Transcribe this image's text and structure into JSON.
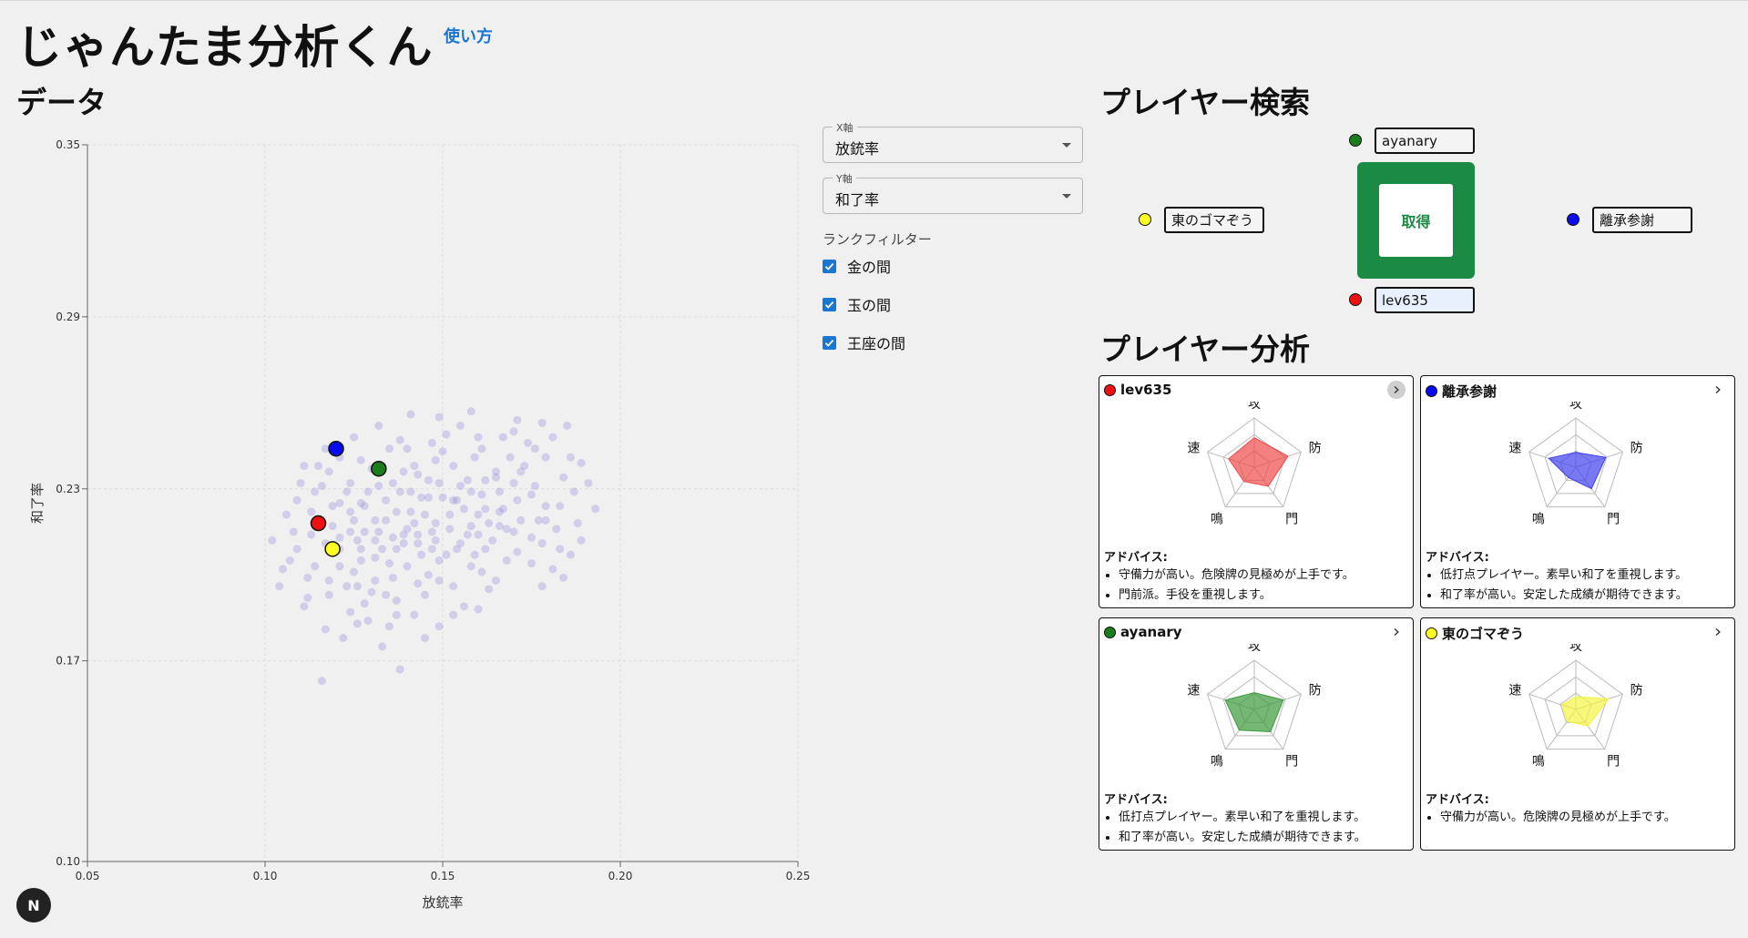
{
  "app": {
    "title": "じゃんたま分析くん",
    "help_link": "使い方",
    "corner_badge": "N"
  },
  "sections": {
    "data": "データ",
    "search": "プレイヤー検索",
    "analysis": "プレイヤー分析"
  },
  "controls": {
    "x_axis": {
      "legend": "X軸",
      "value": "放銃率"
    },
    "y_axis": {
      "legend": "Y軸",
      "value": "和了率"
    },
    "rank_filter": {
      "label": "ランクフィルター",
      "items": [
        {
          "label": "金の間",
          "checked": true
        },
        {
          "label": "玉の間",
          "checked": true
        },
        {
          "label": "王座の間",
          "checked": true
        }
      ]
    }
  },
  "search": {
    "get_button": "取得",
    "players": [
      {
        "slot": "top",
        "name": "ayanary",
        "color": "#1b7d1b"
      },
      {
        "slot": "left",
        "name": "東のゴマぞう",
        "color": "#ffff22"
      },
      {
        "slot": "right",
        "name": "離承参謝",
        "color": "#0a0aee"
      },
      {
        "slot": "bottom",
        "name": "lev635",
        "color": "#ee1111"
      }
    ]
  },
  "analysis": {
    "axes": [
      "攻",
      "防",
      "門",
      "鳴",
      "速"
    ],
    "advice_label": "アドバイス:",
    "cards": [
      {
        "name": "lev635",
        "color": "#ee1111",
        "fill": "#f04a4a",
        "values": [
          0.6,
          0.72,
          0.48,
          0.36,
          0.55
        ],
        "advice": [
          "守備力が高い。危険牌の見極めが上手です。",
          "門前派。手役を重視します。"
        ]
      },
      {
        "name": "離承参謝",
        "color": "#0a0aee",
        "fill": "#4040ee",
        "values": [
          0.3,
          0.64,
          0.54,
          0.26,
          0.58
        ],
        "advice": [
          "低打点プレイヤー。素早い和了を重視します。",
          "和了率が高い。安定した成績が期待できます。"
        ]
      },
      {
        "name": "ayanary",
        "color": "#1b7d1b",
        "fill": "#3a9a3a",
        "values": [
          0.34,
          0.62,
          0.56,
          0.52,
          0.62
        ],
        "advice": [
          "低打点プレイヤー。素早い和了を重視します。",
          "和了率が高い。安定した成績が期待できます。"
        ]
      },
      {
        "name": "東のゴマぞう",
        "color": "#ffff22",
        "fill": "#f4f440",
        "values": [
          0.26,
          0.7,
          0.42,
          0.3,
          0.3
        ],
        "advice": [
          "守備力が高い。危険牌の見極めが上手です。"
        ]
      }
    ]
  },
  "chart_data": {
    "type": "scatter",
    "xlabel": "放銃率",
    "ylabel": "和了率",
    "xlim": [
      0.05,
      0.25
    ],
    "ylim": [
      0.1,
      0.35
    ],
    "x_ticks": [
      "0.05",
      "0.10",
      "0.15",
      "0.20",
      "0.25"
    ],
    "y_ticks": [
      "0.10",
      "0.17",
      "0.23",
      "0.29",
      "0.35"
    ],
    "grid": true,
    "background": {
      "color": "#8c86d8",
      "points": [
        [
          0.12,
          0.245
        ],
        [
          0.116,
          0.231
        ],
        [
          0.108,
          0.215
        ],
        [
          0.118,
          0.198
        ],
        [
          0.112,
          0.192
        ],
        [
          0.102,
          0.212
        ],
        [
          0.109,
          0.226
        ],
        [
          0.124,
          0.222
        ],
        [
          0.128,
          0.215
        ],
        [
          0.131,
          0.206
        ],
        [
          0.126,
          0.196
        ],
        [
          0.136,
          0.213
        ],
        [
          0.141,
          0.222
        ],
        [
          0.144,
          0.227
        ],
        [
          0.132,
          0.231
        ],
        [
          0.139,
          0.236
        ],
        [
          0.148,
          0.218
        ],
        [
          0.151,
          0.207
        ],
        [
          0.146,
          0.2
        ],
        [
          0.154,
          0.226
        ],
        [
          0.157,
          0.214
        ],
        [
          0.16,
          0.221
        ],
        [
          0.162,
          0.233
        ],
        [
          0.166,
          0.222
        ],
        [
          0.17,
          0.215
        ],
        [
          0.175,
          0.228
        ],
        [
          0.172,
          0.236
        ],
        [
          0.178,
          0.211
        ],
        [
          0.183,
          0.224
        ],
        [
          0.186,
          0.207
        ],
        [
          0.191,
          0.232
        ],
        [
          0.181,
          0.202
        ],
        [
          0.168,
          0.205
        ],
        [
          0.163,
          0.195
        ],
        [
          0.156,
          0.189
        ],
        [
          0.149,
          0.182
        ],
        [
          0.142,
          0.186
        ],
        [
          0.137,
          0.191
        ],
        [
          0.129,
          0.184
        ],
        [
          0.122,
          0.178
        ],
        [
          0.116,
          0.163
        ],
        [
          0.133,
          0.175
        ],
        [
          0.138,
          0.167
        ],
        [
          0.141,
          0.256
        ],
        [
          0.151,
          0.249
        ],
        [
          0.159,
          0.241
        ],
        [
          0.167,
          0.248
        ],
        [
          0.171,
          0.254
        ],
        [
          0.176,
          0.244
        ],
        [
          0.186,
          0.241
        ],
        [
          0.143,
          0.235
        ],
        [
          0.135,
          0.244
        ],
        [
          0.127,
          0.24
        ],
        [
          0.118,
          0.236
        ],
        [
          0.113,
          0.222
        ],
        [
          0.107,
          0.205
        ],
        [
          0.104,
          0.196
        ],
        [
          0.114,
          0.203
        ],
        [
          0.121,
          0.209
        ],
        [
          0.125,
          0.201
        ],
        [
          0.131,
          0.198
        ],
        [
          0.135,
          0.204
        ],
        [
          0.139,
          0.211
        ],
        [
          0.143,
          0.214
        ],
        [
          0.147,
          0.209
        ],
        [
          0.152,
          0.216
        ],
        [
          0.156,
          0.223
        ],
        [
          0.161,
          0.228
        ],
        [
          0.165,
          0.234
        ],
        [
          0.169,
          0.241
        ],
        [
          0.173,
          0.238
        ],
        [
          0.177,
          0.219
        ],
        [
          0.182,
          0.216
        ],
        [
          0.188,
          0.218
        ],
        [
          0.184,
          0.234
        ],
        [
          0.179,
          0.241
        ],
        [
          0.171,
          0.226
        ],
        [
          0.164,
          0.212
        ],
        [
          0.158,
          0.203
        ],
        [
          0.153,
          0.196
        ],
        [
          0.145,
          0.193
        ],
        [
          0.137,
          0.186
        ],
        [
          0.128,
          0.19
        ],
        [
          0.124,
          0.187
        ],
        [
          0.117,
          0.181
        ],
        [
          0.111,
          0.189
        ],
        [
          0.106,
          0.221
        ],
        [
          0.11,
          0.232
        ],
        [
          0.115,
          0.238
        ],
        [
          0.123,
          0.229
        ],
        [
          0.127,
          0.225
        ],
        [
          0.131,
          0.219
        ],
        [
          0.134,
          0.226
        ],
        [
          0.138,
          0.229
        ],
        [
          0.142,
          0.218
        ],
        [
          0.146,
          0.227
        ],
        [
          0.149,
          0.232
        ],
        [
          0.153,
          0.238
        ],
        [
          0.157,
          0.233
        ],
        [
          0.16,
          0.214
        ],
        [
          0.163,
          0.218
        ],
        [
          0.167,
          0.223
        ],
        [
          0.171,
          0.208
        ],
        [
          0.175,
          0.213
        ],
        [
          0.179,
          0.224
        ],
        [
          0.183,
          0.209
        ],
        [
          0.187,
          0.229
        ],
        [
          0.193,
          0.223
        ],
        [
          0.155,
          0.252
        ],
        [
          0.161,
          0.244
        ],
        [
          0.165,
          0.236
        ],
        [
          0.174,
          0.246
        ],
        [
          0.181,
          0.248
        ],
        [
          0.185,
          0.252
        ],
        [
          0.189,
          0.239
        ],
        [
          0.147,
          0.246
        ],
        [
          0.13,
          0.237
        ],
        [
          0.121,
          0.241
        ],
        [
          0.114,
          0.229
        ],
        [
          0.119,
          0.217
        ],
        [
          0.126,
          0.212
        ],
        [
          0.133,
          0.209
        ],
        [
          0.136,
          0.199
        ],
        [
          0.14,
          0.203
        ],
        [
          0.144,
          0.207
        ],
        [
          0.148,
          0.212
        ],
        [
          0.152,
          0.221
        ],
        [
          0.158,
          0.229
        ],
        [
          0.166,
          0.229
        ],
        [
          0.17,
          0.232
        ],
        [
          0.176,
          0.231
        ],
        [
          0.179,
          0.219
        ],
        [
          0.168,
          0.216
        ],
        [
          0.161,
          0.201
        ],
        [
          0.154,
          0.209
        ],
        [
          0.149,
          0.198
        ],
        [
          0.143,
          0.197
        ],
        [
          0.134,
          0.193
        ],
        [
          0.127,
          0.205
        ],
        [
          0.121,
          0.203
        ],
        [
          0.117,
          0.211
        ],
        [
          0.113,
          0.214
        ],
        [
          0.109,
          0.209
        ],
        [
          0.105,
          0.202
        ],
        [
          0.119,
          0.224
        ],
        [
          0.124,
          0.232
        ],
        [
          0.129,
          0.229
        ],
        [
          0.137,
          0.222
        ],
        [
          0.141,
          0.229
        ],
        [
          0.145,
          0.221
        ],
        [
          0.15,
          0.227
        ],
        [
          0.155,
          0.231
        ],
        [
          0.158,
          0.217
        ],
        [
          0.147,
          0.215
        ],
        [
          0.139,
          0.214
        ],
        [
          0.132,
          0.215
        ],
        [
          0.125,
          0.219
        ],
        [
          0.128,
          0.224
        ],
        [
          0.136,
          0.232
        ],
        [
          0.142,
          0.238
        ],
        [
          0.148,
          0.24
        ],
        [
          0.138,
          0.247
        ],
        [
          0.132,
          0.252
        ],
        [
          0.125,
          0.248
        ],
        [
          0.117,
          0.244
        ],
        [
          0.111,
          0.238
        ],
        [
          0.115,
          0.219
        ],
        [
          0.121,
          0.213
        ],
        [
          0.127,
          0.209
        ],
        [
          0.134,
          0.219
        ],
        [
          0.14,
          0.216
        ],
        [
          0.146,
          0.233
        ],
        [
          0.153,
          0.226
        ],
        [
          0.162,
          0.223
        ],
        [
          0.166,
          0.217
        ],
        [
          0.172,
          0.219
        ],
        [
          0.112,
          0.199
        ],
        [
          0.118,
          0.193
        ],
        [
          0.123,
          0.196
        ],
        [
          0.13,
          0.194
        ],
        [
          0.126,
          0.183
        ],
        [
          0.135,
          0.182
        ],
        [
          0.145,
          0.178
        ],
        [
          0.153,
          0.186
        ],
        [
          0.16,
          0.188
        ],
        [
          0.165,
          0.198
        ],
        [
          0.175,
          0.204
        ],
        [
          0.178,
          0.196
        ],
        [
          0.184,
          0.199
        ],
        [
          0.189,
          0.212
        ],
        [
          0.133,
          0.238
        ],
        [
          0.14,
          0.244
        ],
        [
          0.15,
          0.243
        ],
        [
          0.16,
          0.248
        ],
        [
          0.17,
          0.25
        ],
        [
          0.178,
          0.253
        ],
        [
          0.158,
          0.257
        ],
        [
          0.149,
          0.255
        ],
        [
          0.121,
          0.225
        ],
        [
          0.124,
          0.215
        ],
        [
          0.131,
          0.212
        ],
        [
          0.137,
          0.209
        ],
        [
          0.143,
          0.211
        ],
        [
          0.149,
          0.205
        ],
        [
          0.155,
          0.211
        ],
        [
          0.159,
          0.207
        ],
        [
          0.162,
          0.209
        ]
      ]
    },
    "highlighted": [
      {
        "name": "離承参謝",
        "x": 0.12,
        "y": 0.244,
        "color": "#0a0aee"
      },
      {
        "name": "ayanary",
        "x": 0.132,
        "y": 0.237,
        "color": "#1b7d1b"
      },
      {
        "name": "lev635",
        "x": 0.115,
        "y": 0.218,
        "color": "#ee1111"
      },
      {
        "name": "東のゴマぞう",
        "x": 0.119,
        "y": 0.209,
        "color": "#ffff22"
      }
    ]
  }
}
